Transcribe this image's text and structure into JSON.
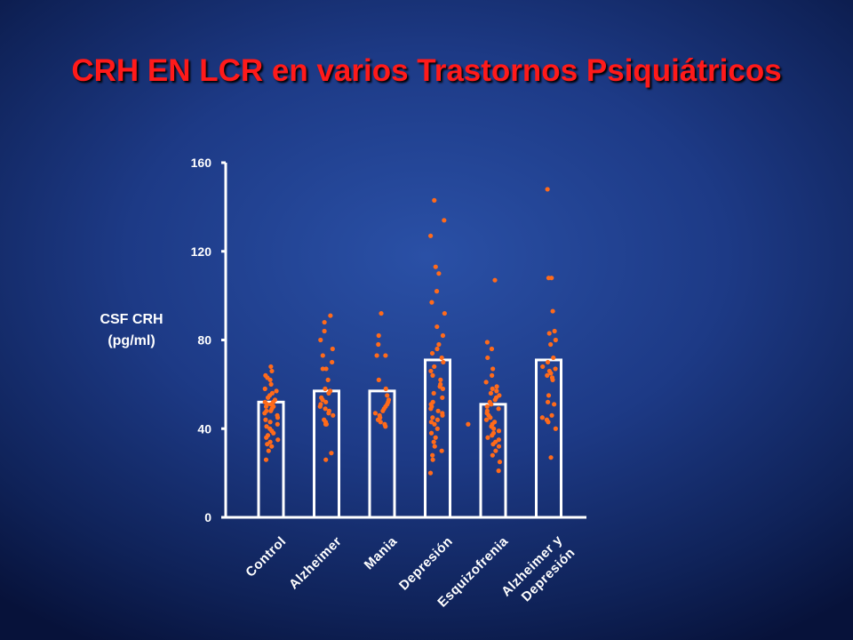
{
  "title": "CRH EN LCR en varios Trastornos Psiquiátricos",
  "chart_data": {
    "type": "bar",
    "title": "CRH EN LCR en varios Trastornos Psiquiátricos",
    "ylabel": [
      "CSF CRH",
      "(pg/ml)"
    ],
    "xlabel": "",
    "ylim": [
      0,
      160
    ],
    "yticks": [
      0,
      40,
      80,
      120,
      160
    ],
    "grid": false,
    "categories": [
      [
        "Control"
      ],
      [
        "Alzheimer"
      ],
      [
        "Mania"
      ],
      [
        "Depresión"
      ],
      [
        "Esquizofrenia"
      ],
      [
        "Alzheimer y",
        "Depresión"
      ]
    ],
    "values": [
      52,
      57,
      57,
      71,
      51,
      71
    ],
    "points": [
      [
        68,
        66,
        64,
        63,
        62,
        60,
        58,
        57,
        56,
        55,
        54,
        53,
        52,
        52,
        51,
        51,
        50,
        50,
        49,
        48,
        48,
        47,
        46,
        45,
        44,
        43,
        42,
        41,
        40,
        39,
        38,
        37,
        36,
        35,
        34,
        33,
        32,
        30,
        26
      ],
      [
        91,
        88,
        84,
        80,
        76,
        73,
        70,
        67,
        67,
        62,
        58,
        57,
        56,
        54,
        53,
        52,
        51,
        50,
        49,
        48,
        47,
        46,
        44,
        43,
        42,
        42,
        29,
        26
      ],
      [
        92,
        82,
        78,
        73,
        73,
        62,
        58,
        55,
        53,
        52,
        51,
        50,
        49,
        48,
        47,
        46,
        45,
        44,
        43,
        42,
        41
      ],
      [
        143,
        134,
        127,
        113,
        110,
        102,
        97,
        92,
        86,
        82,
        78,
        76,
        74,
        72,
        70,
        68,
        66,
        64,
        62,
        60,
        59,
        58,
        56,
        54,
        52,
        51,
        50,
        49,
        48,
        47,
        46,
        45,
        44,
        43,
        42,
        40,
        38,
        36,
        34,
        32,
        30,
        28,
        26,
        20
      ],
      [
        107,
        79,
        76,
        72,
        67,
        64,
        61,
        59,
        58,
        57,
        56,
        55,
        54,
        53,
        52,
        51,
        50,
        49,
        48,
        47,
        46,
        45,
        44,
        43,
        42,
        41,
        40,
        39,
        38,
        37,
        36,
        35,
        34,
        33,
        32,
        30,
        28,
        25,
        21
      ],
      [
        148,
        108,
        108,
        93,
        84,
        83,
        80,
        78,
        72,
        70,
        68,
        67,
        66,
        65,
        64,
        63,
        62,
        55,
        52,
        51,
        46,
        45,
        44,
        43,
        40,
        27
      ]
    ],
    "extra_points": [
      {
        "x": 3.55,
        "y": 42
      }
    ],
    "bar_color": "#ffffff",
    "point_color": "#ff6a1a",
    "axis_color": "#ffffff"
  }
}
